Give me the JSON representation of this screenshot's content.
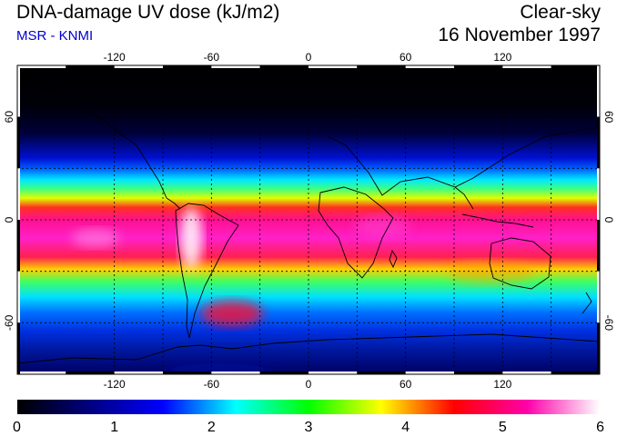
{
  "header": {
    "title": "DNA-damage UV dose (kJ/m2)",
    "subtitle": "MSR - KNMI",
    "condition": "Clear-sky",
    "date": "16 November 1997"
  },
  "map": {
    "lon_ticks": [
      "-120",
      "-60",
      "0",
      "60",
      "120"
    ],
    "lat_ticks": [
      "60",
      "0",
      "-60"
    ],
    "lon_values": [
      -120,
      -60,
      0,
      60,
      120
    ],
    "lat_values": [
      60,
      0,
      -60
    ],
    "lon_range": [
      -180,
      180
    ],
    "lat_range": [
      -90,
      90
    ],
    "grid_lons": [
      -120,
      -90,
      -60,
      -30,
      0,
      30,
      60,
      90,
      120,
      150
    ],
    "grid_lats": [
      60,
      30,
      0,
      -30,
      -60
    ]
  },
  "colorbar": {
    "ticks": [
      "0",
      "1",
      "2",
      "3",
      "4",
      "5",
      "6"
    ],
    "range": [
      0,
      6
    ],
    "colors": [
      "#000000",
      "#000080",
      "#0000ff",
      "#00ffff",
      "#00ff00",
      "#ffff00",
      "#ff0000",
      "#ff00aa",
      "#ffffff"
    ]
  }
}
